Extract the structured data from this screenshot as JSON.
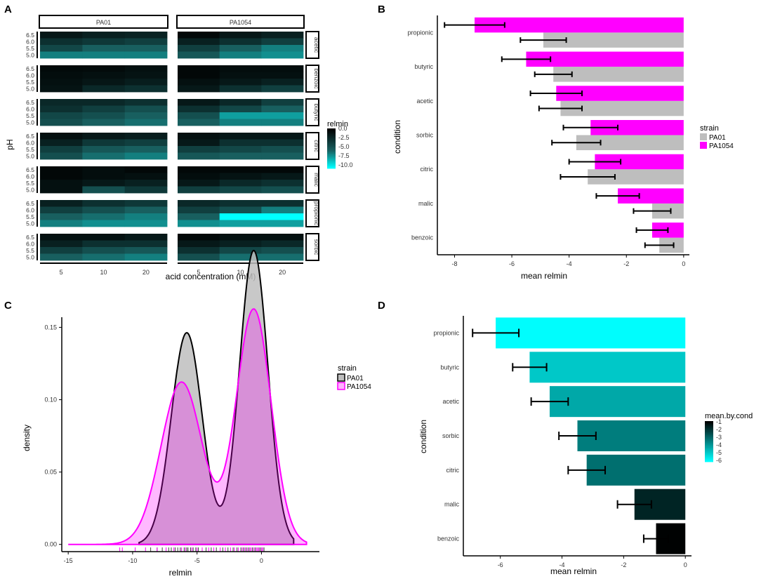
{
  "panels": {
    "a": "A",
    "b": "B",
    "c": "C",
    "d": "D"
  },
  "colors": {
    "pa01": "#bebebe",
    "pa1054": "#ff00ff",
    "heat_low": "#00ffff",
    "heat_high": "#000000"
  },
  "chart_data": [
    {
      "panel": "A",
      "type": "heatmap",
      "xlabel": "acid concentration (mM)",
      "ylabel": "pH",
      "x_ticks": [
        "5",
        "10",
        "20"
      ],
      "y_ticks": [
        "6.5",
        "6.0",
        "5.5",
        "5.0"
      ],
      "columns": [
        "PA01",
        "PA1054"
      ],
      "rows": [
        "acetic",
        "benzoic",
        "butyric",
        "citric",
        "malic",
        "propionic",
        "sorbic"
      ],
      "legend_title": "relmin",
      "legend_ticks": [
        "0.0",
        "-2.5",
        "-5.0",
        "-7.5",
        "-10.0"
      ],
      "scale_range": [
        -11,
        0
      ],
      "values": {
        "PA01": {
          "acetic": [
            [
              -1.5,
              -2.0,
              -2.2
            ],
            [
              -3.0,
              -3.5,
              -4.0
            ],
            [
              -4.5,
              -6.0,
              -6.0
            ],
            [
              -7.0,
              -7.0,
              -7.0
            ]
          ],
          "benzoic": [
            [
              -0.6,
              -0.7,
              -1.0
            ],
            [
              -0.8,
              -1.0,
              -1.2
            ],
            [
              -1.0,
              -1.4,
              -1.8
            ],
            [
              -1.2,
              -2.5,
              -3.0
            ]
          ],
          "butyric": [
            [
              -2.5,
              -2.5,
              -3.0
            ],
            [
              -3.0,
              -4.0,
              -5.0
            ],
            [
              -4.5,
              -5.0,
              -6.0
            ],
            [
              -5.0,
              -6.0,
              -6.5
            ]
          ],
          "citric": [
            [
              -1.0,
              -1.5,
              -1.8
            ],
            [
              -2.0,
              -3.5,
              -4.0
            ],
            [
              -4.0,
              -5.5,
              -6.0
            ],
            [
              -5.0,
              -6.5,
              -7.0
            ]
          ],
          "malic": [
            [
              -0.5,
              -0.8,
              -0.5
            ],
            [
              -0.5,
              -0.8,
              -1.0
            ],
            [
              -1.0,
              -1.5,
              -2.0
            ],
            [
              -1.0,
              -5.0,
              -3.5
            ]
          ],
          "propionic": [
            [
              -2.0,
              -3.0,
              -3.5
            ],
            [
              -4.0,
              -5.0,
              -6.0
            ],
            [
              -6.0,
              -6.5,
              -7.0
            ],
            [
              -7.0,
              -7.5,
              -7.5
            ]
          ],
          "sorbic": [
            [
              -1.0,
              -1.0,
              -1.5
            ],
            [
              -2.0,
              -3.0,
              -3.0
            ],
            [
              -4.0,
              -5.0,
              -5.5
            ],
            [
              -6.0,
              -6.5,
              -7.0
            ]
          ]
        },
        "PA1054": {
          "acetic": [
            [
              -0.5,
              -1.5,
              -2.0
            ],
            [
              -2.0,
              -3.0,
              -4.0
            ],
            [
              -4.0,
              -6.0,
              -7.0
            ],
            [
              -5.5,
              -7.0,
              -7.5
            ]
          ],
          "benzoic": [
            [
              -0.5,
              -0.8,
              -0.8
            ],
            [
              -0.5,
              -1.0,
              -1.0
            ],
            [
              -1.0,
              -1.5,
              -2.0
            ],
            [
              -1.5,
              -3.0,
              -4.0
            ]
          ],
          "butyric": [
            [
              -1.5,
              -2.5,
              -4.0
            ],
            [
              -3.0,
              -4.5,
              -6.0
            ],
            [
              -5.0,
              -8.0,
              -8.0
            ],
            [
              -6.0,
              -7.0,
              -7.0
            ]
          ],
          "citric": [
            [
              -1.0,
              -1.5,
              -1.5
            ],
            [
              -1.5,
              -3.0,
              -3.0
            ],
            [
              -4.0,
              -4.5,
              -5.0
            ],
            [
              -5.5,
              -6.0,
              -6.0
            ]
          ],
          "malic": [
            [
              -0.5,
              -0.5,
              -0.5
            ],
            [
              -0.8,
              -1.2,
              -1.5
            ],
            [
              -1.5,
              -2.5,
              -3.0
            ],
            [
              -4.0,
              -4.5,
              -5.0
            ]
          ],
          "propionic": [
            [
              -2.5,
              -3.0,
              -3.0
            ],
            [
              -4.0,
              -5.0,
              -7.0
            ],
            [
              -6.0,
              -11.0,
              -11.0
            ],
            [
              -7.5,
              -8.0,
              -8.0
            ]
          ],
          "sorbic": [
            [
              -0.5,
              -1.0,
              -1.0
            ],
            [
              -1.5,
              -2.0,
              -2.5
            ],
            [
              -3.0,
              -4.5,
              -5.0
            ],
            [
              -5.0,
              -6.5,
              -6.5
            ]
          ]
        }
      }
    },
    {
      "panel": "B",
      "type": "bar",
      "orientation": "horizontal",
      "xlabel": "mean relmin",
      "ylabel": "condition",
      "categories": [
        "propionic",
        "butyric",
        "acetic",
        "sorbic",
        "citric",
        "malic",
        "benzoic"
      ],
      "series": [
        {
          "name": "PA1054",
          "values": [
            -7.3,
            -5.5,
            -4.45,
            -3.25,
            -3.1,
            -2.3,
            -1.1
          ],
          "errors": [
            1.05,
            0.85,
            0.9,
            0.95,
            0.9,
            0.75,
            0.55
          ]
        },
        {
          "name": "PA01",
          "values": [
            -4.9,
            -4.55,
            -4.3,
            -3.75,
            -3.35,
            -1.1,
            -0.85
          ],
          "errors": [
            0.8,
            0.65,
            0.75,
            0.85,
            0.95,
            0.65,
            0.5
          ]
        }
      ],
      "xlim": [
        -8.6,
        0.2
      ],
      "x_ticks": [
        -8,
        -6,
        -4,
        -2,
        0
      ],
      "x_tick_labels": [
        "-8",
        "-6",
        "-4",
        "-2",
        "0"
      ],
      "legend_title": "strain",
      "legend_entries": [
        "PA01",
        "PA1054"
      ]
    },
    {
      "panel": "C",
      "type": "area",
      "xlabel": "relmin",
      "ylabel": "density",
      "xlim": [
        -15.5,
        4.5
      ],
      "ylim": [
        -0.005,
        0.157
      ],
      "x_ticks": [
        -15,
        -10,
        -5,
        0
      ],
      "x_tick_labels": [
        "-15",
        "-10",
        "-5",
        "0"
      ],
      "y_ticks": [
        0.0,
        0.05,
        0.1,
        0.15
      ],
      "y_tick_labels": [
        "0.00",
        "0.05",
        "0.10",
        "0.15"
      ],
      "series": [
        {
          "name": "PA01",
          "components": [
            [
              -5.8,
              1.2,
              0.44
            ],
            [
              -0.6,
              1.1,
              0.56
            ]
          ],
          "domain": [
            -9.5,
            2.5
          ],
          "rug": [
            -8.6,
            -8.1,
            -7.7,
            -7.2,
            -7.0,
            -6.7,
            -6.5,
            -6.3,
            -6.0,
            -5.8,
            -5.7,
            -5.5,
            -5.3,
            -5.1,
            -4.9,
            -4.6,
            -4.3,
            -3.9,
            -3.5,
            -3.0,
            -2.6,
            -2.2,
            -1.9,
            -1.6,
            -1.4,
            -1.2,
            -1.0,
            -0.9,
            -0.7,
            -0.5,
            -0.4,
            -0.3,
            -0.2,
            -0.1,
            0.0,
            0.1,
            0.2
          ]
        },
        {
          "name": "PA1054",
          "components": [
            [
              -6.2,
              1.6,
              0.45
            ],
            [
              -0.6,
              1.35,
              0.55
            ]
          ],
          "domain": [
            -15,
            3.5
          ],
          "rug": [
            -11.0,
            -10.8,
            -9.8,
            -9.0,
            -8.1,
            -7.4,
            -6.8,
            -6.2,
            -5.9,
            -5.4,
            -5.0,
            -4.6,
            -4.1,
            -3.7,
            -3.2,
            -2.8,
            -2.4,
            -2.1,
            -1.8,
            -1.5,
            -1.3,
            -1.1,
            -0.9,
            -0.8,
            -0.6,
            -0.4,
            -0.3,
            -0.2,
            0.0,
            0.1
          ]
        }
      ],
      "legend_title": "strain",
      "legend_entries": [
        "PA01",
        "PA1054"
      ]
    },
    {
      "panel": "D",
      "type": "bar",
      "orientation": "horizontal",
      "xlabel": "mean relmin",
      "ylabel": "condition",
      "categories": [
        "propionic",
        "butyric",
        "acetic",
        "sorbic",
        "citric",
        "malic",
        "benzoic"
      ],
      "values": [
        -6.15,
        -5.05,
        -4.4,
        -3.5,
        -3.2,
        -1.65,
        -0.95
      ],
      "errors": [
        0.75,
        0.55,
        0.6,
        0.6,
        0.6,
        0.55,
        0.4
      ],
      "xlim": [
        -7.2,
        0.2
      ],
      "x_ticks": [
        -6,
        -4,
        -2,
        0
      ],
      "x_tick_labels": [
        "-6",
        "-4",
        "-2",
        "0"
      ],
      "legend_title": "mean.by.cond",
      "legend_ticks": [
        -1,
        -2,
        -3,
        -4,
        -5,
        -6
      ],
      "legend_tick_labels": [
        "-1",
        "-2",
        "-3",
        "-4",
        "-5",
        "-6"
      ],
      "color_range": [
        -6.2,
        -0.9
      ]
    }
  ]
}
